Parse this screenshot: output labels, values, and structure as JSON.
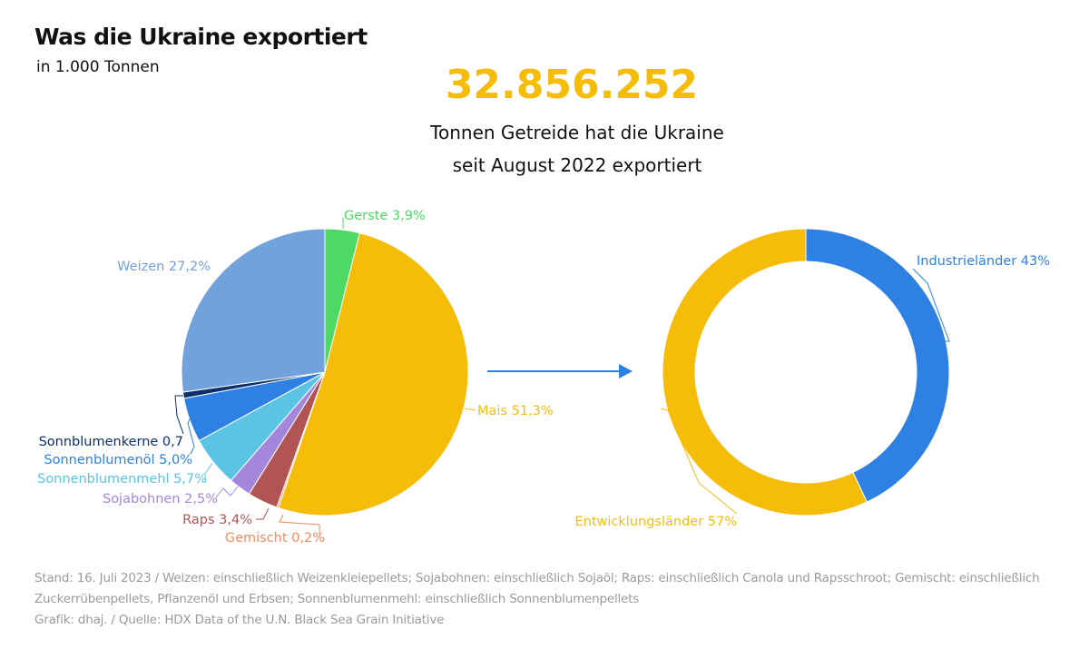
{
  "header": {
    "title": "Was die Ukraine exportiert",
    "subtitle": "in 1.000 Tonnen"
  },
  "highlight": {
    "value": "32.856.252",
    "line1": "Tonnen Getreide hat die Ukraine",
    "line2": "seit August 2022 exportiert"
  },
  "chart_data": [
    {
      "type": "pie",
      "slices": [
        {
          "label": "Gerste 3,9%",
          "name": "Gerste",
          "value": 3.9,
          "color": "#4cd964"
        },
        {
          "label": "Mais 51,3%",
          "name": "Mais",
          "value": 51.3,
          "color": "#f5bc0a"
        },
        {
          "label": "Gemischt 0,2%",
          "name": "Gemischt",
          "value": 0.2,
          "color": "#f08a5d"
        },
        {
          "label": "Raps 3,4%",
          "name": "Raps",
          "value": 3.4,
          "color": "#b05454"
        },
        {
          "label": "Sojabohnen 2,5%",
          "name": "Sojabohnen",
          "value": 2.5,
          "color": "#a487dd"
        },
        {
          "label": "Sonnenblumenmehl 5,7%",
          "name": "Sonnenblumenmehl",
          "value": 5.7,
          "color": "#5bc3e4"
        },
        {
          "label": "Sonnenblumenöl 5,0%",
          "name": "Sonnenblumenöl",
          "value": 5.0,
          "color": "#2f80e3"
        },
        {
          "label": "Sonnblumenkerne 0,7",
          "name": "Sonnblumenkerne",
          "value": 0.7,
          "color": "#0e2f6b"
        },
        {
          "label": "Weizen 27,2%",
          "name": "Weizen",
          "value": 27.2,
          "color": "#72a2db"
        }
      ]
    },
    {
      "type": "donut",
      "slices": [
        {
          "label": "Industrieländer 43%",
          "name": "Industrieländer",
          "value": 43,
          "color": "#2f80e3"
        },
        {
          "label": "Entwicklungsländer 57%",
          "name": "Entwicklungsländer",
          "value": 57,
          "color": "#f5bc0a"
        }
      ]
    }
  ],
  "footer": {
    "line1": "Stand: 16. Juli 2023 / Weizen: einschließlich Weizenkleiepellets; Sojabohnen: einschließlich Sojaöl; Raps: einschließlich Canola und Rapsschroot; Gemischt: einschließlich",
    "line2": "Zuckerrübenpellets, Pflanzenöl und Erbsen; Sonnenblumenmehl: einschließlich Sonnenblumenpellets",
    "line3": "Grafik: dhaj. / Quelle:  HDX Data of the U.N. Black Sea Grain Initiative"
  }
}
